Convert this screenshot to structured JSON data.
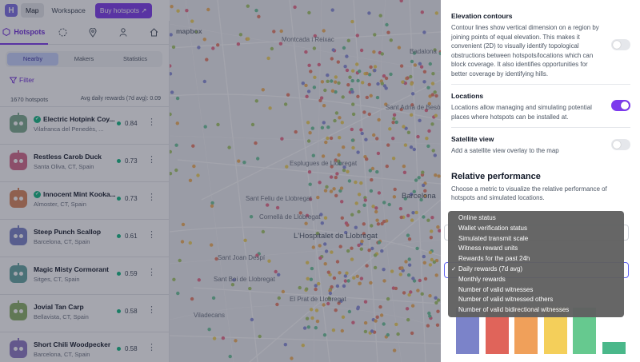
{
  "topbar": {
    "logo": "H",
    "nav": [
      "Map",
      "Workspace"
    ],
    "buy_button": "Buy hotspots ↗"
  },
  "sidebar": {
    "tabs": [
      {
        "name": "hotspots",
        "label": "Hotspots",
        "icon": "hexagon-icon"
      },
      {
        "name": "coverage",
        "label": "",
        "icon": "dashed-circle-icon"
      },
      {
        "name": "locations",
        "label": "",
        "icon": "location-pin-icon"
      },
      {
        "name": "profile",
        "label": "",
        "icon": "user-icon"
      },
      {
        "name": "home",
        "label": "",
        "icon": "home-icon"
      }
    ],
    "subtabs": [
      "Nearby",
      "Makers",
      "Statistics"
    ],
    "filter_label": "Filter",
    "hotspot_count": "1670 hotspots",
    "avg_label": "Avg daily rewards (7d avg): 0.09",
    "hotspots": [
      {
        "name": "Electric Hotpink Coy...",
        "location": "Vilafranca del Penedès, ...",
        "reward": "0.84",
        "verified": true,
        "color": "#7dab8e"
      },
      {
        "name": "Restless Carob Duck",
        "location": "Santa Oliva, CT, Spain",
        "reward": "0.73",
        "verified": false,
        "color": "#d56a8b"
      },
      {
        "name": "Innocent Mint Kooka...",
        "location": "Almoster, CT, Spain",
        "reward": "0.73",
        "verified": true,
        "color": "#d9875c"
      },
      {
        "name": "Steep Punch Scallop",
        "location": "Barcelona, CT, Spain",
        "reward": "0.61",
        "verified": false,
        "color": "#7b83c9"
      },
      {
        "name": "Magic Misty Cormorant",
        "location": "Sitges, CT, Spain",
        "reward": "0.59",
        "verified": false,
        "color": "#62a4a0"
      },
      {
        "name": "Jovial Tan Carp",
        "location": "Bellavista, CT, Spain",
        "reward": "0.58",
        "verified": false,
        "color": "#8bb066"
      },
      {
        "name": "Short Chili Woodpecker",
        "location": "Barcelona, CT, Spain",
        "reward": "0.58",
        "verified": false,
        "color": "#8d79c4"
      }
    ]
  },
  "map": {
    "attribution": "mapbox",
    "labels": [
      "Sant Feliu de Llobregat",
      "Cornellà de Llobregat",
      "L'Hospitalet de Llobregat",
      "Esplugues de Llobregat",
      "Barcelona",
      "Sant Joan Despí",
      "Viladecans",
      "El Prat de Llobregat",
      "Sant Boi de Llobregat",
      "Badalona",
      "Montcada i Reixac",
      "Sant Adrià de Besòs"
    ]
  },
  "panel": {
    "elevation": {
      "title": "Elevation contours",
      "description": "Contour lines show vertical dimension on a region by joining points of equal elevation. This makes it convenient (2D) to visually identify topological obstructions between hotspots/locations which can block coverage. It also identifies opportunities for better coverage by identifying hills.",
      "enabled": false
    },
    "locations": {
      "title": "Locations",
      "description": "Locations allow managing and simulating potential places where hotspots can be installed at.",
      "enabled": true
    },
    "satellite": {
      "title": "Satellite view",
      "description": "Add a satellite view overlay to the map",
      "enabled": false
    },
    "performance": {
      "title": "Relative performance",
      "description": "Choose a metric to visualize the relative performance of hotspots and simulated locations.",
      "selected": "Daily rewards (7d avg)",
      "options": [
        "Online status",
        "Wallet verification status",
        "Simulated transmit scale",
        "Witness reward units",
        "Rewards for the past 24h",
        "Daily rewards (7d avg)",
        "Monthly rewards",
        "Number of valid witnesses",
        "Number of valid witnessed others",
        "Number of valid bidirectional witnesses"
      ],
      "legend_colors": [
        "#7b83c9",
        "#e0645a",
        "#f0a05a",
        "#f4cf5a",
        "#66c98f",
        "#4ab88a"
      ]
    }
  }
}
